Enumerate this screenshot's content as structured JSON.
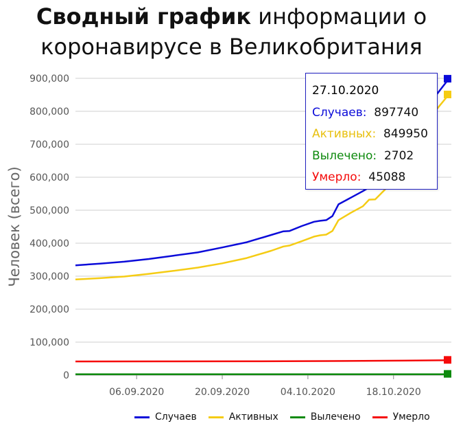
{
  "title": {
    "bold": "Сводный график",
    "line1_rest": " информации о",
    "line2": "коронавирусе в Великобритания"
  },
  "chart_data": {
    "type": "line",
    "ylabel": "Человек (всего)",
    "ylim": [
      0,
      900000
    ],
    "yticks": [
      "0",
      "100,000",
      "200,000",
      "300,000",
      "400,000",
      "500,000",
      "600,000",
      "700,000",
      "800,000",
      "900,000"
    ],
    "xticks": [
      "06.09.2020",
      "20.09.2020",
      "04.10.2020",
      "18.10.2020"
    ],
    "xlim": [
      "2020-08-27",
      "2020-10-27"
    ],
    "grid": true,
    "legend_position": "bottom-right",
    "series": [
      {
        "name": "Случаев",
        "color": "#0b0bd9",
        "points": [
          [
            "2020-08-27",
            333000
          ],
          [
            "2020-08-31",
            338000
          ],
          [
            "2020-09-04",
            344000
          ],
          [
            "2020-09-08",
            352000
          ],
          [
            "2020-09-12",
            362000
          ],
          [
            "2020-09-16",
            372000
          ],
          [
            "2020-09-20",
            387000
          ],
          [
            "2020-09-24",
            403000
          ],
          [
            "2020-09-28",
            425000
          ],
          [
            "2020-09-30",
            436000
          ],
          [
            "2020-10-01",
            437000
          ],
          [
            "2020-10-03",
            452000
          ],
          [
            "2020-10-05",
            465000
          ],
          [
            "2020-10-06",
            468000
          ],
          [
            "2020-10-07",
            470000
          ],
          [
            "2020-10-08",
            482000
          ],
          [
            "2020-10-09",
            518000
          ],
          [
            "2020-10-11",
            538000
          ],
          [
            "2020-10-13",
            558000
          ],
          [
            "2020-10-15",
            580000
          ],
          [
            "2020-10-17",
            610000
          ],
          [
            "2020-10-19",
            640000
          ],
          [
            "2020-10-21",
            700000
          ],
          [
            "2020-10-23",
            780000
          ],
          [
            "2020-10-25",
            850000
          ],
          [
            "2020-10-27",
            897740
          ]
        ]
      },
      {
        "name": "Активных",
        "color": "#f5cc14",
        "points": [
          [
            "2020-08-27",
            290000
          ],
          [
            "2020-08-31",
            294000
          ],
          [
            "2020-09-04",
            299000
          ],
          [
            "2020-09-08",
            307000
          ],
          [
            "2020-09-12",
            316000
          ],
          [
            "2020-09-16",
            326000
          ],
          [
            "2020-09-20",
            339000
          ],
          [
            "2020-09-24",
            355000
          ],
          [
            "2020-09-28",
            377000
          ],
          [
            "2020-09-30",
            390000
          ],
          [
            "2020-10-01",
            393000
          ],
          [
            "2020-10-03",
            406000
          ],
          [
            "2020-10-05",
            420000
          ],
          [
            "2020-10-06",
            424000
          ],
          [
            "2020-10-07",
            426000
          ],
          [
            "2020-10-08",
            437000
          ],
          [
            "2020-10-09",
            470000
          ],
          [
            "2020-10-11",
            492000
          ],
          [
            "2020-10-13",
            512000
          ],
          [
            "2020-10-14",
            532000
          ],
          [
            "2020-10-15",
            533000
          ],
          [
            "2020-10-17",
            570000
          ],
          [
            "2020-10-19",
            610000
          ],
          [
            "2020-10-21",
            670000
          ],
          [
            "2020-10-23",
            740000
          ],
          [
            "2020-10-25",
            805000
          ],
          [
            "2020-10-27",
            849950
          ]
        ]
      },
      {
        "name": "Вылечено",
        "color": "#0e8a0e",
        "points": [
          [
            "2020-08-27",
            2702
          ],
          [
            "2020-10-27",
            2702
          ]
        ]
      },
      {
        "name": "Умерло",
        "color": "#f50a0a",
        "points": [
          [
            "2020-08-27",
            41500
          ],
          [
            "2020-09-10",
            41600
          ],
          [
            "2020-09-24",
            41900
          ],
          [
            "2020-10-08",
            42700
          ],
          [
            "2020-10-20",
            44000
          ],
          [
            "2020-10-27",
            45088
          ]
        ]
      }
    ],
    "tooltip": {
      "date": "27.10.2020",
      "rows": [
        {
          "label": "Случаев:",
          "value": "897740",
          "color": "#0b0bd9"
        },
        {
          "label": "Активных:",
          "value": "849950",
          "color": "#f5cc14"
        },
        {
          "label": "Вылечено:",
          "value": "2702",
          "color": "#0e8a0e"
        },
        {
          "label": "Умерло:",
          "value": "45088",
          "color": "#f50a0a"
        }
      ]
    }
  }
}
